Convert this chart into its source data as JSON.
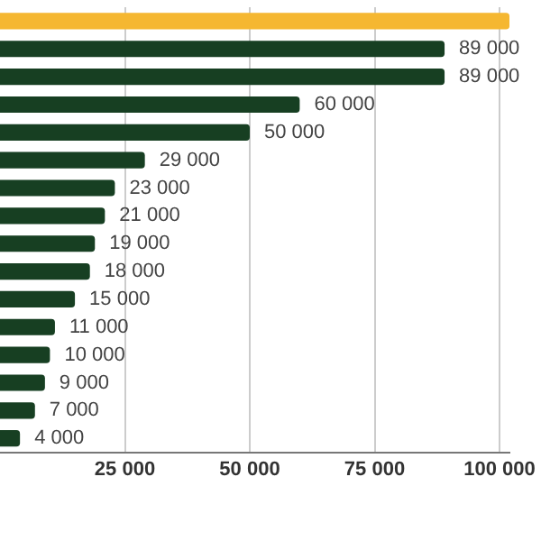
{
  "chart_data": {
    "type": "bar",
    "orientation": "horizontal",
    "categories": [
      null,
      null,
      null,
      null,
      null,
      null,
      null,
      null,
      null,
      null,
      null,
      null,
      null,
      null,
      null,
      null
    ],
    "values": [
      102000,
      89000,
      89000,
      60000,
      50000,
      29000,
      23000,
      21000,
      19000,
      18000,
      15000,
      11000,
      10000,
      9000,
      7000,
      4000
    ],
    "colors": [
      "#f5b731",
      "#173f22",
      "#173f22",
      "#173f22",
      "#173f22",
      "#173f22",
      "#173f22",
      "#173f22",
      "#173f22",
      "#173f22",
      "#173f22",
      "#173f22",
      "#173f22",
      "#173f22",
      "#173f22",
      "#173f22"
    ],
    "value_labels": [
      null,
      "89 000",
      "89 000",
      "60 000",
      "50 000",
      "29 000",
      "23 000",
      "21 000",
      "19 000",
      "18 000",
      "15 000",
      "11 000",
      "10 000",
      "9 000",
      "7 000",
      "4 000"
    ],
    "xlim": [
      0,
      102000
    ],
    "xticks": [
      {
        "value": 25000,
        "label": "25 000"
      },
      {
        "value": 50000,
        "label": "50 000"
      },
      {
        "value": 75000,
        "label": "75 000"
      },
      {
        "value": 100000,
        "label": "100 000"
      }
    ],
    "grid": "x",
    "legend": false,
    "tick_labels": "x"
  }
}
